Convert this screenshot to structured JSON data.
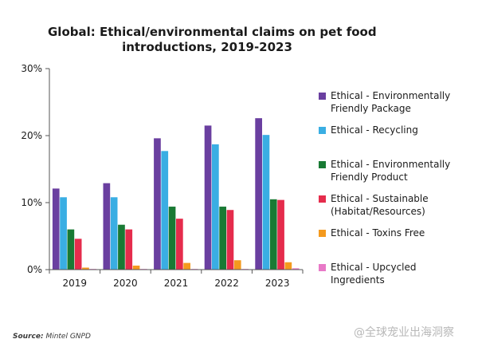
{
  "chart_data": {
    "type": "bar",
    "title_lines": [
      "Global: Ethical/environmental claims on pet food",
      "introductions, 2019-2023"
    ],
    "categories": [
      "2019",
      "2020",
      "2021",
      "2022",
      "2023"
    ],
    "ylim": [
      0,
      30
    ],
    "yticks": [
      0,
      10,
      20,
      30
    ],
    "ytick_labels": [
      "0%",
      "10%",
      "20%",
      "30%"
    ],
    "grid": false,
    "legend_position": "right",
    "series": [
      {
        "name": "Ethical - Environmentally\nFriendly Package",
        "color": "#6a3fa0",
        "values": [
          12.1,
          12.9,
          19.6,
          21.5,
          22.6
        ]
      },
      {
        "name": "Ethical - Recycling",
        "color": "#3aaee3",
        "values": [
          10.8,
          10.8,
          17.7,
          18.7,
          20.1
        ]
      },
      {
        "name": "Ethical - Environmentally\nFriendly Product",
        "color": "#197a34",
        "values": [
          6.0,
          6.7,
          9.4,
          9.4,
          10.5
        ]
      },
      {
        "name": "Ethical - Sustainable\n(Habitat/Resources)",
        "color": "#e52c4c",
        "values": [
          4.6,
          6.0,
          7.6,
          8.9,
          10.4
        ]
      },
      {
        "name": "Ethical - Toxins Free",
        "color": "#f49a1e",
        "values": [
          0.3,
          0.6,
          1.0,
          1.4,
          1.1
        ]
      },
      {
        "name": "Ethical - Upcycled\nIngredients",
        "color": "#e879c7",
        "values": [
          0.1,
          0.1,
          0.1,
          0.1,
          0.2
        ]
      }
    ]
  },
  "footer": {
    "source_label": "Source:",
    "source_text": "Mintel GNPD",
    "watermark": "@全球宠业出海洞察"
  }
}
